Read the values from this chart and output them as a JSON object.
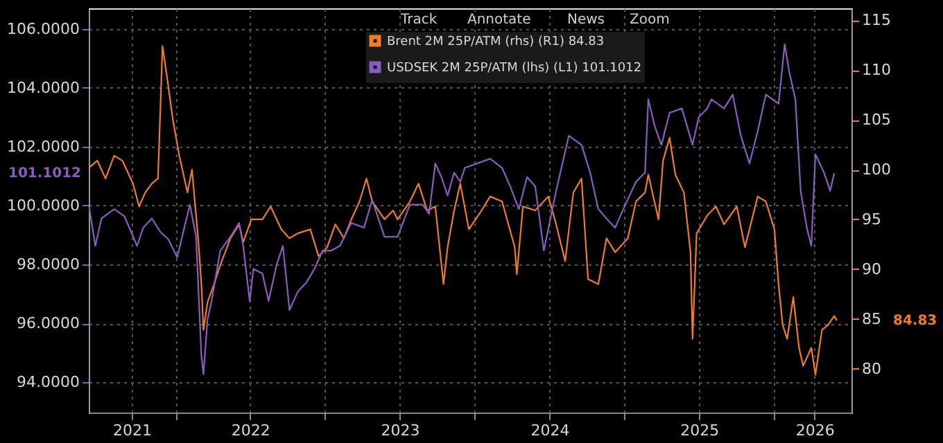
{
  "chart_data": {
    "type": "line",
    "xlim": [
      "2021-06-03",
      "2026-07-09"
    ],
    "xticks": [
      {
        "value": "2021-09-16",
        "label": "2021"
      },
      {
        "value": "2022-01-01",
        "label": null
      },
      {
        "value": "2022-07-02",
        "label": "2022"
      },
      {
        "value": "2023-01-01",
        "label": null
      },
      {
        "value": "2023-07-02",
        "label": "2023"
      },
      {
        "value": "2024-01-01",
        "label": null
      },
      {
        "value": "2024-07-02",
        "label": "2024"
      },
      {
        "value": "2025-01-01",
        "label": null
      },
      {
        "value": "2025-07-02",
        "label": "2025"
      },
      {
        "value": "2026-01-01",
        "label": null
      },
      {
        "value": "2026-04-10",
        "label": "2026"
      }
    ],
    "ylim": [
      92.97,
      106.7
    ],
    "yticks": [
      {
        "value": 94,
        "label": "94.0000"
      },
      {
        "value": 96,
        "label": "96.0000"
      },
      {
        "value": 98,
        "label": "98.0000"
      },
      {
        "value": 100,
        "label": "100.0000"
      },
      {
        "value": 102,
        "label": "102.0000"
      },
      {
        "value": 104,
        "label": "104.0000"
      },
      {
        "value": 106,
        "label": "106.0000"
      }
    ],
    "y2lim": [
      75.6,
      116.2
    ],
    "y2ticks": [
      80,
      85,
      90,
      95,
      100,
      105,
      110,
      115
    ],
    "grid": true,
    "legend": "top",
    "line_style": "solid",
    "annotations": [
      "84.83",
      "101.1012",
      "Track",
      "Annotate",
      "News",
      "Zoom"
    ],
    "series": [
      {
        "name": "Brent 2M 25P/ATM (rhs) (R1) 84.83",
        "color": "#f07b2a",
        "axis": "y2",
        "x": [
          "2021-06-04",
          "2021-06-24",
          "2021-07-14",
          "2021-08-04",
          "2021-08-24",
          "2021-09-19",
          "2021-10-04",
          "2021-10-19",
          "2021-11-04",
          "2021-11-19",
          "2021-11-30",
          "2021-12-10",
          "2021-12-25",
          "2022-01-10",
          "2022-01-30",
          "2022-02-10",
          "2022-02-25",
          "2022-03-05",
          "2022-03-10",
          "2022-03-20",
          "2022-04-05",
          "2022-04-20",
          "2022-05-15",
          "2022-06-05",
          "2022-06-15",
          "2022-07-05",
          "2022-08-01",
          "2022-08-21",
          "2022-09-16",
          "2022-10-06",
          "2022-10-26",
          "2022-11-26",
          "2022-12-16",
          "2023-01-06",
          "2023-01-26",
          "2023-02-16",
          "2023-03-06",
          "2023-03-26",
          "2023-04-12",
          "2023-04-26",
          "2023-05-26",
          "2023-06-16",
          "2023-06-27",
          "2023-07-27",
          "2023-08-17",
          "2023-09-07",
          "2023-09-27",
          "2023-10-17",
          "2023-10-27",
          "2023-11-12",
          "2023-11-27",
          "2023-12-18",
          "2024-01-18",
          "2024-02-08",
          "2024-03-08",
          "2024-04-08",
          "2024-04-13",
          "2024-04-28",
          "2024-05-28",
          "2024-06-29",
          "2024-07-18",
          "2024-08-09",
          "2024-08-29",
          "2024-09-18",
          "2024-10-04",
          "2024-10-29",
          "2024-11-18",
          "2024-12-09",
          "2025-01-09",
          "2025-01-29",
          "2025-02-20",
          "2025-02-28",
          "2025-03-25",
          "2025-04-05",
          "2025-04-21",
          "2025-05-05",
          "2025-05-26",
          "2025-06-11",
          "2025-06-16",
          "2025-06-26",
          "2025-07-22",
          "2025-08-12",
          "2025-09-01",
          "2025-10-02",
          "2025-10-22",
          "2025-11-22",
          "2025-12-12",
          "2026-01-02",
          "2026-01-12",
          "2026-01-22",
          "2026-02-02",
          "2026-02-17",
          "2026-03-03",
          "2026-03-13",
          "2026-04-02",
          "2026-04-12",
          "2026-04-28",
          "2026-05-13",
          "2026-05-28",
          "2026-06-03"
        ],
        "values": [
          100.2,
          100.9,
          99.1,
          101.4,
          100.9,
          98.6,
          96.3,
          97.7,
          98.6,
          99.1,
          112.4,
          109.6,
          105.1,
          101.4,
          97.7,
          100.0,
          93.1,
          88.5,
          83.9,
          86.7,
          88.5,
          90.4,
          93.1,
          94.5,
          92.7,
          95.0,
          95.0,
          96.3,
          94.0,
          93.1,
          93.6,
          94.0,
          91.3,
          92.2,
          94.5,
          93.1,
          95.0,
          96.8,
          99.1,
          96.8,
          95.0,
          95.9,
          95.0,
          96.8,
          98.6,
          95.9,
          96.3,
          88.5,
          92.2,
          95.9,
          98.6,
          94.0,
          95.9,
          97.3,
          96.8,
          92.2,
          89.5,
          96.3,
          95.9,
          97.3,
          94.5,
          90.8,
          97.7,
          99.1,
          89.0,
          88.5,
          93.1,
          91.7,
          93.1,
          96.8,
          97.7,
          99.5,
          95.0,
          100.9,
          103.2,
          99.5,
          97.7,
          91.7,
          83.0,
          93.6,
          95.4,
          96.3,
          94.5,
          96.3,
          92.2,
          97.3,
          96.8,
          94.0,
          88.5,
          84.4,
          83.0,
          87.2,
          82.1,
          80.3,
          82.1,
          79.4,
          83.9,
          84.4,
          85.3,
          84.83
        ]
      },
      {
        "name": "USDSEK 2M 25P/ATM (lhs) (L1) 101.1012",
        "color": "#8a5cc0",
        "axis": "y",
        "x": [
          "2021-06-04",
          "2021-06-19",
          "2021-07-04",
          "2021-08-04",
          "2021-08-29",
          "2021-09-29",
          "2021-10-14",
          "2021-11-04",
          "2021-11-25",
          "2021-12-14",
          "2022-01-05",
          "2022-01-25",
          "2022-02-05",
          "2022-02-20",
          "2022-03-05",
          "2022-03-10",
          "2022-03-20",
          "2022-03-30",
          "2022-04-20",
          "2022-05-15",
          "2022-06-05",
          "2022-06-15",
          "2022-07-01",
          "2022-07-10",
          "2022-08-01",
          "2022-08-16",
          "2022-09-05",
          "2022-09-20",
          "2022-10-06",
          "2022-10-26",
          "2022-11-16",
          "2022-12-06",
          "2022-12-26",
          "2023-01-16",
          "2023-02-06",
          "2023-03-06",
          "2023-04-06",
          "2023-04-26",
          "2023-05-26",
          "2023-06-27",
          "2023-07-27",
          "2023-08-27",
          "2023-09-12",
          "2023-09-27",
          "2023-10-12",
          "2023-10-27",
          "2023-11-12",
          "2023-11-27",
          "2023-12-08",
          "2024-02-08",
          "2024-03-08",
          "2024-03-28",
          "2024-04-18",
          "2024-05-08",
          "2024-05-28",
          "2024-06-18",
          "2024-07-18",
          "2024-08-18",
          "2024-09-18",
          "2024-10-09",
          "2024-10-29",
          "2024-11-18",
          "2024-12-09",
          "2024-12-29",
          "2025-01-29",
          "2025-02-20",
          "2025-02-28",
          "2025-03-16",
          "2025-04-01",
          "2025-04-21",
          "2025-05-21",
          "2025-06-16",
          "2025-07-01",
          "2025-07-22",
          "2025-08-01",
          "2025-09-01",
          "2025-09-22",
          "2025-10-12",
          "2025-11-02",
          "2025-11-22",
          "2025-12-12",
          "2026-01-12",
          "2026-01-27",
          "2026-02-07",
          "2026-02-22",
          "2026-03-07",
          "2026-03-22",
          "2026-04-02",
          "2026-04-12",
          "2026-05-03",
          "2026-05-18",
          "2026-05-28"
        ],
        "values": [
          99.95,
          98.63,
          99.56,
          99.88,
          99.64,
          98.63,
          99.25,
          99.56,
          99.1,
          98.86,
          98.24,
          99.41,
          100.03,
          98.94,
          94.89,
          94.27,
          96.14,
          96.76,
          98.47,
          98.94,
          99.41,
          98.63,
          96.76,
          97.85,
          97.69,
          96.76,
          98.01,
          98.63,
          96.45,
          97.07,
          97.38,
          97.85,
          98.47,
          98.47,
          98.63,
          99.41,
          99.25,
          100.19,
          98.94,
          98.94,
          100.03,
          100.03,
          99.72,
          101.43,
          100.97,
          100.34,
          101.12,
          100.81,
          101.28,
          101.59,
          101.28,
          100.65,
          99.88,
          100.97,
          100.65,
          98.47,
          100.5,
          102.37,
          102.06,
          101.12,
          99.88,
          99.56,
          99.25,
          99.88,
          100.81,
          101.12,
          103.61,
          102.68,
          102.06,
          103.15,
          103.3,
          102.06,
          103.0,
          103.3,
          103.61,
          103.3,
          103.77,
          102.37,
          101.43,
          102.52,
          103.77,
          103.46,
          105.48,
          104.55,
          103.61,
          100.5,
          99.25,
          98.63,
          101.74,
          101.12,
          100.5,
          101.1012
        ]
      }
    ]
  }
}
